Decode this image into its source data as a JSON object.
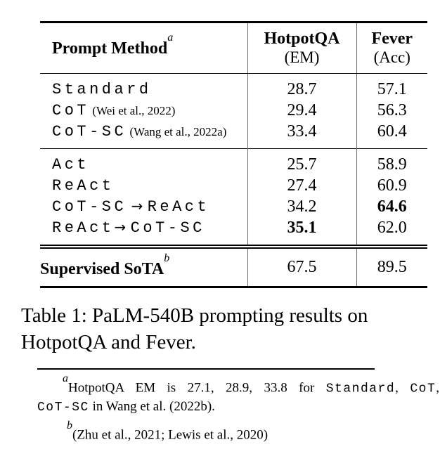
{
  "table": {
    "header": {
      "col1": "Prompt Method",
      "col1_superscript": "a",
      "col2_line1": "HotpotQA",
      "col2_line2": "(EM)",
      "col3_line1": "Fever",
      "col3_line2": "(Acc)"
    },
    "groups": [
      {
        "rows": [
          {
            "method": [
              {
                "style": "code",
                "text": "Standard"
              }
            ],
            "hotpotqa": "28.7",
            "fever": "57.1"
          },
          {
            "method": [
              {
                "style": "code",
                "text": "CoT"
              },
              {
                "style": "cite",
                "text": " (Wei et al., 2022)"
              }
            ],
            "hotpotqa": "29.4",
            "fever": "56.3"
          },
          {
            "method": [
              {
                "style": "code",
                "text": "CoT-SC"
              },
              {
                "style": "cite",
                "text": " (Wang et al., 2022a)"
              }
            ],
            "hotpotqa": "33.4",
            "fever": "60.4"
          }
        ]
      },
      {
        "rows": [
          {
            "method": [
              {
                "style": "code",
                "text": "Act"
              }
            ],
            "hotpotqa": "25.7",
            "fever": "58.9"
          },
          {
            "method": [
              {
                "style": "code",
                "text": "ReAct"
              }
            ],
            "hotpotqa": "27.4",
            "fever": "60.9"
          },
          {
            "method": [
              {
                "style": "code",
                "text": "CoT-SC"
              },
              {
                "style": "arrow",
                "text": " → "
              },
              {
                "style": "code",
                "text": "ReAct"
              }
            ],
            "hotpotqa": "34.2",
            "fever": "64.6",
            "fever_bold": true
          },
          {
            "method": [
              {
                "style": "code",
                "text": "ReAct"
              },
              {
                "style": "arrow",
                "text": "→ "
              },
              {
                "style": "code",
                "text": "CoT-SC"
              }
            ],
            "hotpotqa": "35.1",
            "fever": "62.0",
            "hotpotqa_bold": true
          }
        ]
      }
    ],
    "footer_row": {
      "label": "Supervised SoTA",
      "superscript": "b",
      "hotpotqa": "67.5",
      "fever": "89.5"
    }
  },
  "caption": {
    "text": "Table 1: PaLM-540B prompting results on HotpotQA and Fever."
  },
  "footnotes": {
    "a": {
      "marker": "a",
      "line1": [
        {
          "style": "plain",
          "text": "HotpotQA EM is 27.1, 28.9, 33.8 for "
        },
        {
          "style": "code",
          "text": "Standard"
        },
        {
          "style": "plain",
          "text": ", "
        },
        {
          "style": "code",
          "text": "CoT"
        },
        {
          "style": "plain",
          "text": ","
        }
      ],
      "line2": [
        {
          "style": "code",
          "text": "CoT-SC"
        },
        {
          "style": "plain",
          "text": " in Wang et al. (2022b)."
        }
      ]
    },
    "b": {
      "marker": "b",
      "text": "(Zhu et al., 2021; Lewis et al., 2020)"
    }
  }
}
